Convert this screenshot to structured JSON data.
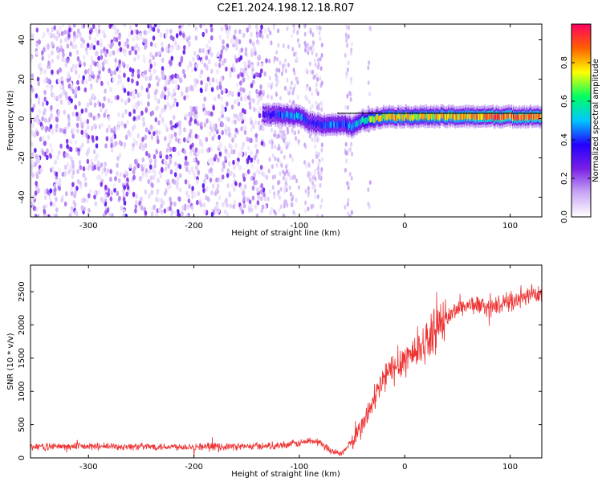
{
  "title": "C2E1.2024.198.12.18.R07",
  "chart_data": [
    {
      "type": "heatmap",
      "title": "C2E1.2024.198.12.18.R07",
      "xlabel": "Height of straight line (km)",
      "ylabel": "Frequency (Hz)",
      "xlim": [
        -355,
        130
      ],
      "ylim": [
        -50,
        48
      ],
      "x_ticks": [
        -300,
        -200,
        -100,
        0,
        100
      ],
      "x_tick_labels": [
        "-300",
        "-200",
        "-100",
        "0",
        "100"
      ],
      "y_ticks": [
        -40,
        -20,
        0,
        20,
        40
      ],
      "y_tick_labels": [
        "-40",
        "-20",
        "0",
        "20",
        "40"
      ],
      "colorbar": {
        "label": "Normalized spectral amplitude",
        "range": [
          0,
          1
        ],
        "ticks": [
          0.0,
          0.2,
          0.4,
          0.6,
          0.8
        ],
        "tick_labels": [
          "0.0",
          "0.2",
          "0.4",
          "0.6",
          "0.8"
        ],
        "colors": [
          "#ffffff",
          "#c9a8f5",
          "#7a1fe6",
          "#2400ff",
          "#00c8ff",
          "#00ff60",
          "#ffff00",
          "#ff6000",
          "#ff0060"
        ]
      },
      "noise_region": {
        "x_range": [
          -355,
          -130
        ],
        "freq_range": [
          -50,
          48
        ],
        "amplitude": 0.12
      },
      "signal_track": {
        "x": [
          -135,
          -120,
          -100,
          -90,
          -80,
          -70,
          -60,
          -50,
          -40,
          -30,
          -20,
          -10,
          0,
          20,
          40,
          60,
          80,
          100,
          130
        ],
        "freq": [
          2,
          2,
          1,
          -2,
          -3,
          -3,
          -3,
          -4,
          -1,
          0,
          1,
          1,
          1,
          1,
          1,
          1,
          1,
          1,
          1
        ],
        "peak_amplitude": [
          0.3,
          0.4,
          0.5,
          0.35,
          0.4,
          0.45,
          0.4,
          0.5,
          0.55,
          0.7,
          0.75,
          0.8,
          0.75,
          0.75,
          0.8,
          0.8,
          0.9,
          0.85,
          0.85
        ]
      }
    },
    {
      "type": "line",
      "xlabel": "Height of straight line (km)",
      "ylabel": "SNR (10 * v/v)",
      "xlim": [
        -355,
        130
      ],
      "ylim": [
        0,
        2900
      ],
      "x_ticks": [
        -300,
        -200,
        -100,
        0,
        100
      ],
      "x_tick_labels": [
        "-300",
        "-200",
        "-100",
        "0",
        "100"
      ],
      "y_ticks": [
        0,
        500,
        1000,
        1500,
        2000,
        2500
      ],
      "y_tick_labels": [
        "0",
        "500",
        "1000",
        "1500",
        "2000",
        "2500"
      ],
      "series": [
        {
          "name": "SNR",
          "color": "#ee3333",
          "x": [
            -355,
            -300,
            -250,
            -200,
            -150,
            -120,
            -100,
            -90,
            -80,
            -70,
            -60,
            -50,
            -45,
            -40,
            -35,
            -30,
            -25,
            -20,
            -10,
            0,
            10,
            20,
            30,
            40,
            50,
            60,
            70,
            80,
            90,
            100,
            110,
            120,
            130
          ],
          "values": [
            170,
            170,
            170,
            170,
            170,
            190,
            220,
            260,
            230,
            110,
            60,
            250,
            350,
            500,
            650,
            850,
            1000,
            1200,
            1350,
            1500,
            1600,
            1750,
            1950,
            2100,
            2250,
            2300,
            2300,
            2250,
            2300,
            2350,
            2400,
            2450,
            2450
          ],
          "noise_amplitude": 150
        }
      ]
    }
  ]
}
